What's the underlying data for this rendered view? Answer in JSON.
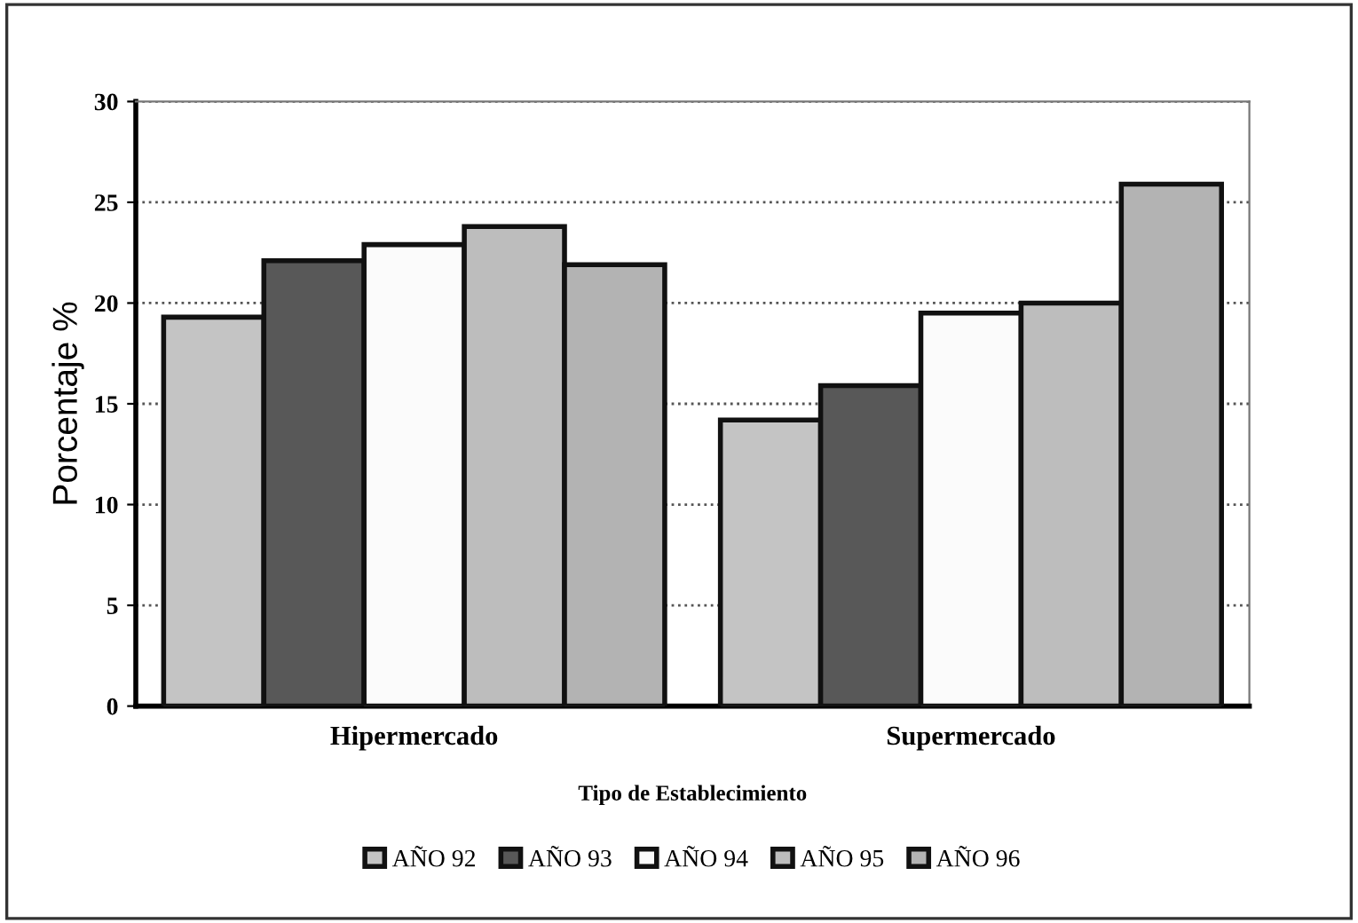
{
  "chart_data": {
    "type": "bar",
    "xlabel": "Tipo de Establecimiento",
    "ylabel": "Porcentaje %",
    "categories": [
      "Hipermercado",
      "Supermercado"
    ],
    "series": [
      {
        "name": "AÑO 92",
        "color": "#c4c4c4",
        "values": [
          19.3,
          14.2
        ]
      },
      {
        "name": "AÑO 93",
        "color": "#585858",
        "values": [
          22.1,
          15.9
        ]
      },
      {
        "name": "AÑO 94",
        "color": "#fbfbfb",
        "values": [
          22.9,
          19.5
        ]
      },
      {
        "name": "AÑO 95",
        "color": "#bdbdbd",
        "values": [
          23.8,
          20.0
        ]
      },
      {
        "name": "AÑO 96",
        "color": "#b3b3b3",
        "values": [
          21.9,
          25.9
        ]
      }
    ],
    "ylim": [
      0,
      30
    ],
    "yticks": [
      0,
      5,
      10,
      15,
      20,
      25,
      30
    ],
    "grid": "y",
    "legend": "bottom"
  }
}
